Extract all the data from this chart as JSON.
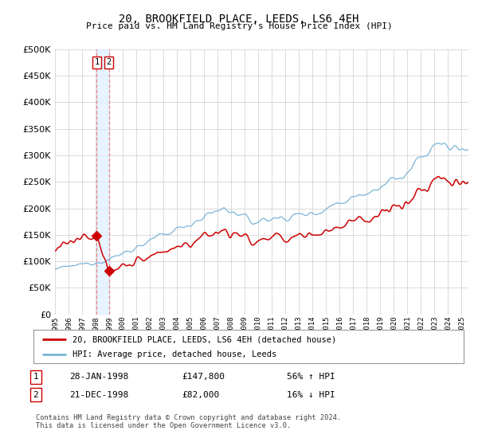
{
  "title": "20, BROOKFIELD PLACE, LEEDS, LS6 4EH",
  "subtitle": "Price paid vs. HM Land Registry's House Price Index (HPI)",
  "legend_line1": "20, BROOKFIELD PLACE, LEEDS, LS6 4EH (detached house)",
  "legend_line2": "HPI: Average price, detached house, Leeds",
  "transaction1_date": "28-JAN-1998",
  "transaction1_price": "£147,800",
  "transaction1_hpi": "56% ↑ HPI",
  "transaction2_date": "21-DEC-1998",
  "transaction2_price": "£82,000",
  "transaction2_hpi": "16% ↓ HPI",
  "footer": "Contains HM Land Registry data © Crown copyright and database right 2024.\nThis data is licensed under the Open Government Licence v3.0.",
  "vline1_x": 1998.08,
  "vline2_x": 1998.97,
  "point1_x": 1998.08,
  "point1_y": 147800,
  "point2_x": 1998.97,
  "point2_y": 82000,
  "hpi_color": "#7ab4d8",
  "price_color": "#cc0000",
  "vline_color": "#ee8888",
  "vshade_color": "#ddeeff",
  "ylim": [
    0,
    500000
  ],
  "xlim_start": 1995.3,
  "xlim_end": 2025.5,
  "background_color": "#ffffff",
  "grid_color": "#cccccc"
}
